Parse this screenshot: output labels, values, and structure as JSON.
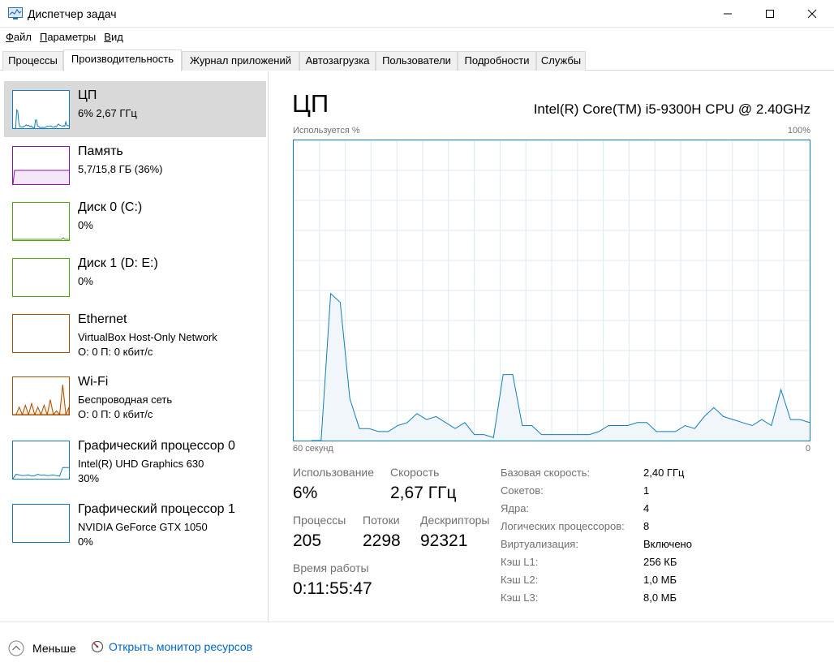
{
  "window": {
    "title": "Диспетчер задач"
  },
  "menu": [
    {
      "pre": "",
      "u": "Ф",
      "post": "айл"
    },
    {
      "pre": "",
      "u": "П",
      "post": "араметры"
    },
    {
      "pre": "",
      "u": "В",
      "post": "ид"
    }
  ],
  "tabs": [
    "Процессы",
    "Производительность",
    "Журнал приложений",
    "Автозагрузка",
    "Пользователи",
    "Подробности",
    "Службы"
  ],
  "active_tab": "Производительность",
  "sidebar": [
    {
      "name": "ЦП",
      "line1": "6%  2,67 ГГц",
      "line2": "",
      "color": "#117dbb",
      "selected": true
    },
    {
      "name": "Память",
      "line1": "5,7/15,8 ГБ (36%)",
      "line2": "",
      "color": "#8b12ae",
      "selected": false
    },
    {
      "name": "Диск 0 (C:)",
      "line1": "0%",
      "line2": "",
      "color": "#4da60c",
      "selected": false
    },
    {
      "name": "Диск 1 (D: E:)",
      "line1": "0%",
      "line2": "",
      "color": "#4da60c",
      "selected": false
    },
    {
      "name": "Ethernet",
      "line1": "VirtualBox Host-Only Network",
      "line2": "О: 0  П: 0 кбит/с",
      "color": "#a74f01",
      "selected": false
    },
    {
      "name": "Wi-Fi",
      "line1": "Беспроводная сеть",
      "line2": "О: 0  П: 0 кбит/с",
      "color": "#a74f01",
      "selected": false
    },
    {
      "name": "Графический процессор 0",
      "line1": "Intel(R) UHD Graphics 630",
      "line2": "30%",
      "color": "#117dbb",
      "selected": false
    },
    {
      "name": "Графический процессор 1",
      "line1": "NVIDIA GeForce GTX 1050",
      "line2": "0%",
      "color": "#117dbb",
      "selected": false
    }
  ],
  "main": {
    "title": "ЦП",
    "model": "Intel(R) Core(TM) i5-9300H CPU @ 2.40GHz",
    "graph_label": "Используется %",
    "graph_max": "100%",
    "time_left": "60 секунд",
    "time_right": "0",
    "stats": {
      "usage_label": "Использование",
      "usage_value": "6%",
      "speed_label": "Скорость",
      "speed_value": "2,67 ГГц",
      "processes_label": "Процессы",
      "processes_value": "205",
      "threads_label": "Потоки",
      "threads_value": "2298",
      "handles_label": "Дескрипторы",
      "handles_value": "92321",
      "uptime_label": "Время работы",
      "uptime_value": "0:11:55:47"
    },
    "specs": [
      {
        "label": "Базовая скорость:",
        "value": "2,40 ГГц"
      },
      {
        "label": "Сокетов:",
        "value": "1"
      },
      {
        "label": "Ядра:",
        "value": "4"
      },
      {
        "label": "Логических процессоров:",
        "value": "8"
      },
      {
        "label": "Виртуализация:",
        "value": "Включено"
      },
      {
        "label": "Кэш L1:",
        "value": "256 КБ"
      },
      {
        "label": "Кэш L2:",
        "value": "1,0 МБ"
      },
      {
        "label": "Кэш L3:",
        "value": "8,0 МБ"
      }
    ]
  },
  "footer": {
    "less": "Меньше",
    "monitor": "Открыть монитор ресурсов"
  },
  "cpu_history_percent": [
    0,
    0,
    49,
    46,
    14,
    4,
    4,
    3,
    3,
    5,
    6,
    9,
    7,
    8,
    6,
    4,
    6,
    2,
    2,
    1,
    22,
    22,
    5,
    5,
    2,
    2,
    2,
    2,
    2,
    2,
    3,
    5,
    5,
    5,
    6,
    6,
    3,
    3,
    3,
    5,
    4,
    8,
    11,
    8,
    7,
    6,
    5,
    7,
    5,
    17,
    7,
    7,
    6
  ],
  "gpu0_history_percent": [
    0,
    12,
    10,
    8,
    9,
    10,
    7,
    8,
    12,
    9,
    10,
    8,
    9,
    10,
    8,
    7,
    30,
    30,
    30
  ],
  "wifi_history_percent": [
    0,
    0,
    20,
    0,
    25,
    0,
    30,
    0,
    20,
    0,
    25,
    0,
    40,
    0,
    10,
    0,
    80,
    0,
    20
  ]
}
